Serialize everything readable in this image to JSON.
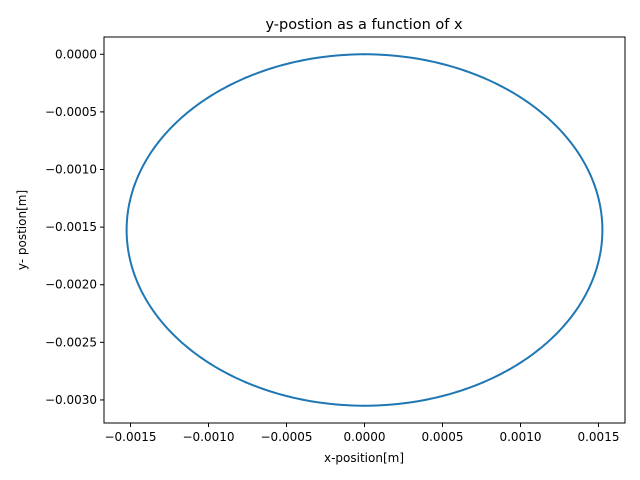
{
  "chart_data": {
    "type": "line",
    "title": "y-postion as a function of x",
    "xlabel": "x-position[m]",
    "ylabel": "y- postion[m]",
    "xlim": [
      -0.00167,
      0.00167
    ],
    "ylim": [
      -0.0032,
      0.00015
    ],
    "xticks": [
      -0.0015,
      -0.001,
      -0.0005,
      0.0,
      0.0005,
      0.001,
      0.0015
    ],
    "xtick_labels": [
      "−0.0015",
      "−0.0010",
      "−0.0005",
      "0.0000",
      "0.0005",
      "0.0010",
      "0.0015"
    ],
    "yticks": [
      0.0,
      -0.0005,
      -0.001,
      -0.0015,
      -0.002,
      -0.0025,
      -0.003
    ],
    "ytick_labels": [
      "0.0000",
      "−0.0005",
      "−0.0010",
      "−0.0015",
      "−0.0020",
      "−0.0025",
      "−0.0030"
    ],
    "grid": false,
    "series": [
      {
        "color": "#1f77b4",
        "center": [
          0.0,
          -0.001525
        ],
        "radius_x": 0.001525,
        "radius_y": 0.001525,
        "x": [
          0.0,
          0.000395,
          0.000763,
          0.001078,
          0.001321,
          0.001473,
          0.001525,
          0.001473,
          0.001321,
          0.001078,
          0.000763,
          0.000395,
          0.0,
          -0.000395,
          -0.000763,
          -0.001078,
          -0.001321,
          -0.001473,
          -0.001525,
          -0.001473,
          -0.001321,
          -0.001078,
          -0.000763,
          -0.000395,
          0.0
        ],
        "y": [
          0.0,
          -5.2e-05,
          -0.000204,
          -0.000447,
          -0.000763,
          -0.00113,
          -0.001525,
          -0.00192,
          -0.002288,
          -0.002603,
          -0.002846,
          -0.002998,
          -0.00305,
          -0.002998,
          -0.002846,
          -0.002603,
          -0.002288,
          -0.00192,
          -0.001525,
          -0.00113,
          -0.000763,
          -0.000447,
          -0.000204,
          -5.2e-05,
          0.0
        ]
      }
    ]
  }
}
